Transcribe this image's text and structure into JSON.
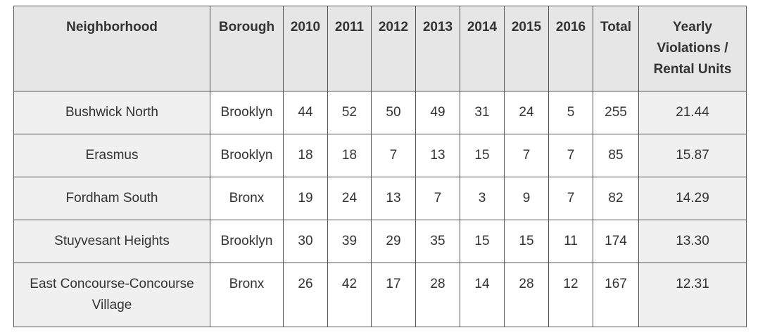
{
  "table": {
    "header": [
      "Neighborhood",
      "Borough",
      "2010",
      "2011",
      "2012",
      "2013",
      "2014",
      "2015",
      "2016",
      "Total",
      "Yearly Violations / Rental Units"
    ],
    "rows": [
      [
        "Bushwick North",
        "Brooklyn",
        "44",
        "52",
        "50",
        "49",
        "31",
        "24",
        "5",
        "255",
        "21.44"
      ],
      [
        "Erasmus",
        "Brooklyn",
        "18",
        "18",
        "7",
        "13",
        "15",
        "7",
        "7",
        "85",
        "15.87"
      ],
      [
        "Fordham South",
        "Bronx",
        "19",
        "24",
        "13",
        "7",
        "3",
        "9",
        "7",
        "82",
        "14.29"
      ],
      [
        "Stuyvesant Heights",
        "Brooklyn",
        "30",
        "39",
        "29",
        "35",
        "15",
        "15",
        "11",
        "174",
        "13.30"
      ],
      [
        "East Concourse-Concourse Village",
        "Bronx",
        "26",
        "42",
        "17",
        "28",
        "14",
        "28",
        "12",
        "167",
        "12.31"
      ]
    ]
  }
}
